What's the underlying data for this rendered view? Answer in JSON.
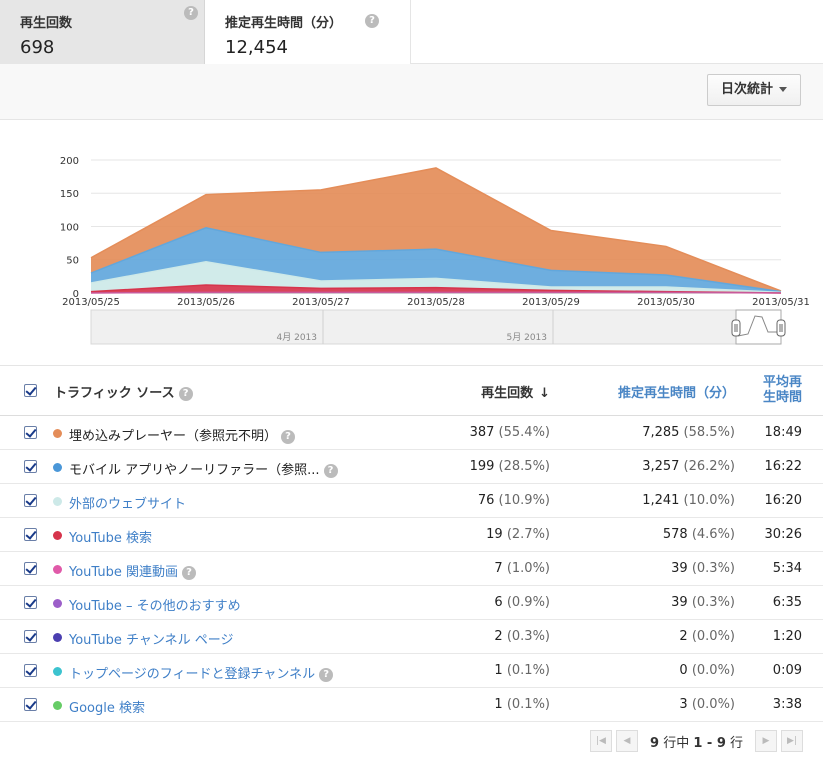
{
  "metrics": [
    {
      "label": "再生回数",
      "value": "698"
    },
    {
      "label": "推定再生時間（分）",
      "value": "12,454"
    }
  ],
  "toolbar": {
    "dropdown_label": "日次統計"
  },
  "chart_data": {
    "type": "area",
    "stacked": true,
    "x": [
      "2013/05/25",
      "2013/05/26",
      "2013/05/27",
      "2013/05/28",
      "2013/05/29",
      "2013/05/30",
      "2013/05/31"
    ],
    "yticks": [
      0,
      50,
      100,
      150,
      200
    ],
    "ylim": [
      0,
      215
    ],
    "series": [
      {
        "color": "#c85a9b",
        "values": [
          0,
          1,
          1,
          1,
          1,
          1,
          0
        ]
      },
      {
        "color": "#d6344c",
        "values": [
          2,
          11,
          6,
          7,
          3,
          1,
          0
        ]
      },
      {
        "color": "#cde9e8",
        "values": [
          13,
          35,
          11,
          14,
          5,
          7,
          1
        ]
      },
      {
        "color": "#62a7dc",
        "values": [
          15,
          51,
          43,
          44,
          25,
          18,
          1
        ]
      },
      {
        "color": "#e48d59",
        "values": [
          23,
          50,
          94,
          122,
          60,
          43,
          1
        ]
      }
    ],
    "navigator_labels": [
      "4月 2013",
      "5月 2013"
    ]
  },
  "table": {
    "headers": {
      "source": "トラフィック ソース",
      "views": "再生回数",
      "sort_arrow": "↓",
      "watch_time": "推定再生時間（分）",
      "avg_line1": "平均再",
      "avg_line2": "生時間"
    },
    "rows": [
      {
        "color": "#e48d59",
        "source": "埋め込みプレーヤー（参照元不明）",
        "link": false,
        "help": true,
        "views": "387",
        "views_pct": "(55.4%)",
        "time": "7,285",
        "time_pct": "(58.5%)",
        "avg": "18:49"
      },
      {
        "color": "#4a97d8",
        "source": "モバイル アプリやノーリファラー（参照...",
        "link": false,
        "help": true,
        "views": "199",
        "views_pct": "(28.5%)",
        "time": "3,257",
        "time_pct": "(26.2%)",
        "avg": "16:22"
      },
      {
        "color": "#cde9e8",
        "source": "外部のウェブサイト",
        "link": true,
        "help": false,
        "views": "76",
        "views_pct": "(10.9%)",
        "time": "1,241",
        "time_pct": "(10.0%)",
        "avg": "16:20"
      },
      {
        "color": "#d6344c",
        "source": "YouTube 検索",
        "link": true,
        "help": false,
        "views": "19",
        "views_pct": "(2.7%)",
        "time": "578",
        "time_pct": "(4.6%)",
        "avg": "30:26"
      },
      {
        "color": "#e05aa9",
        "source": "YouTube 関連動画",
        "link": true,
        "help": true,
        "views": "7",
        "views_pct": "(1.0%)",
        "time": "39",
        "time_pct": "(0.3%)",
        "avg": "5:34"
      },
      {
        "color": "#9c5fc9",
        "source": "YouTube – その他のおすすめ",
        "link": true,
        "help": false,
        "views": "6",
        "views_pct": "(0.9%)",
        "time": "39",
        "time_pct": "(0.3%)",
        "avg": "6:35"
      },
      {
        "color": "#4b3fb0",
        "source": "YouTube チャンネル ページ",
        "link": true,
        "help": false,
        "views": "2",
        "views_pct": "(0.3%)",
        "time": "2",
        "time_pct": "(0.0%)",
        "avg": "1:20"
      },
      {
        "color": "#3cc3cf",
        "source": "トップページのフィードと登録チャンネル",
        "link": true,
        "help": true,
        "views": "1",
        "views_pct": "(0.1%)",
        "time": "0",
        "time_pct": "(0.0%)",
        "avg": "0:09"
      },
      {
        "color": "#66cc66",
        "source": "Google 検索",
        "link": true,
        "help": false,
        "views": "1",
        "views_pct": "(0.1%)",
        "time": "3",
        "time_pct": "(0.0%)",
        "avg": "3:38"
      }
    ]
  },
  "pager": {
    "count": "9",
    "mid": "行中",
    "range": "1 - 9",
    "suffix": "行"
  },
  "icons": {
    "help": "question-circle-icon",
    "first": "first-page-icon",
    "prev": "prev-page-icon",
    "next": "next-page-icon",
    "last": "last-page-icon"
  }
}
